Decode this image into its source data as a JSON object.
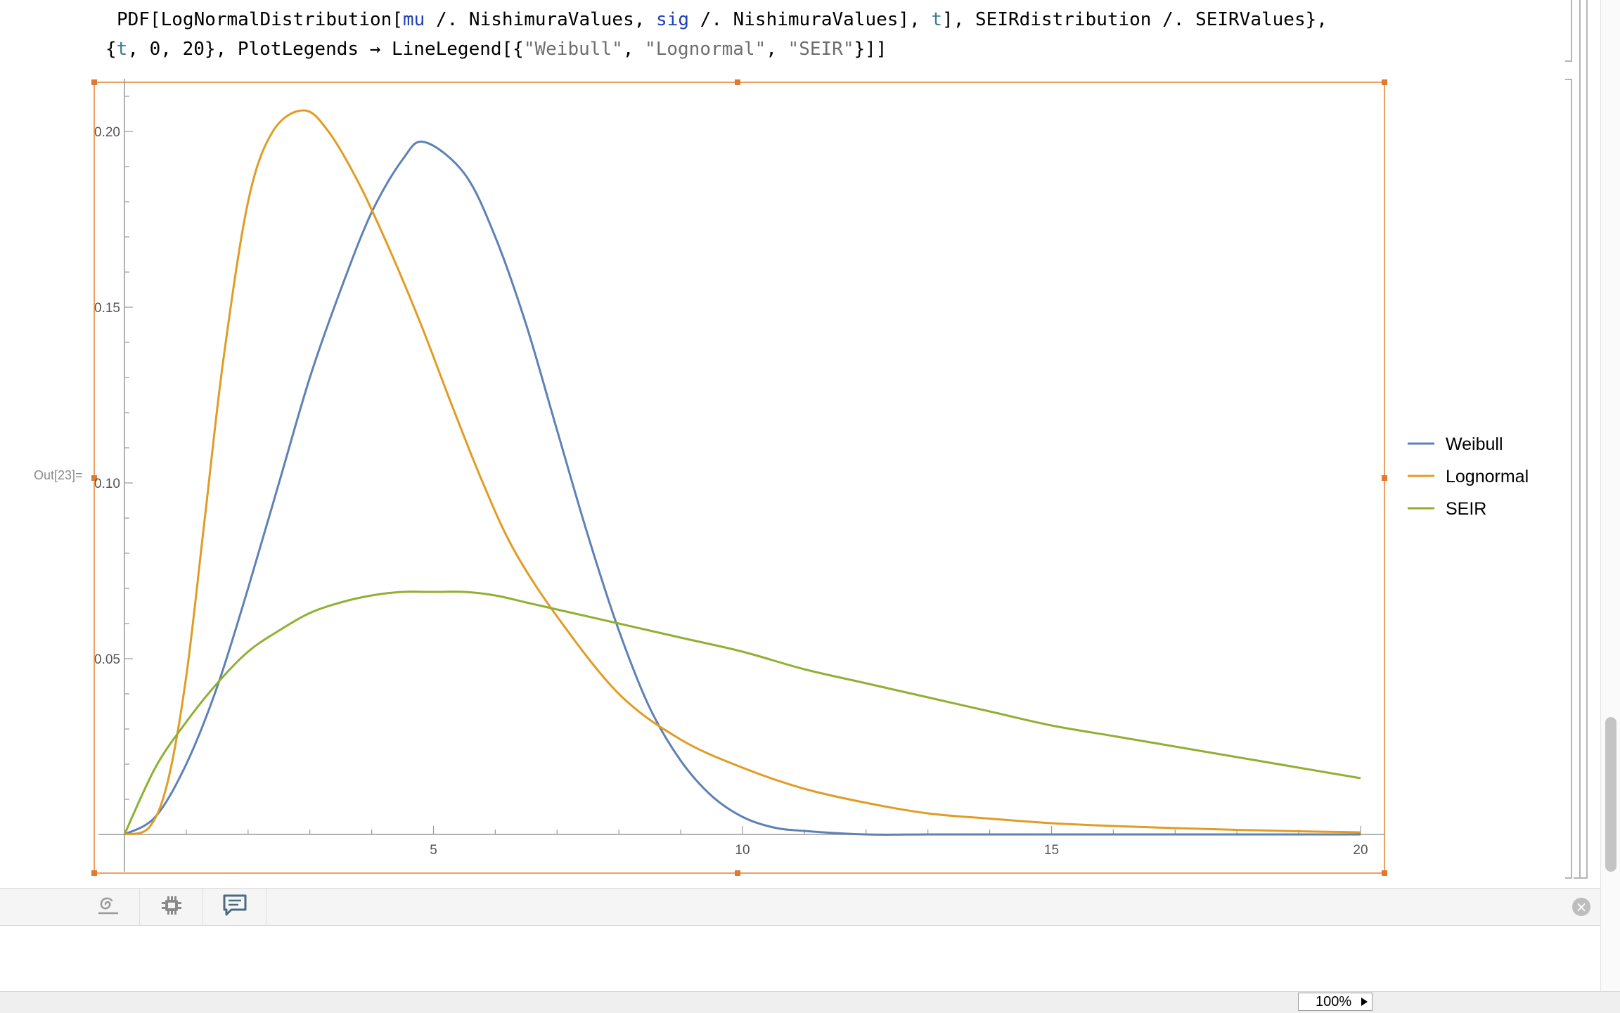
{
  "notebook": {
    "code_line1": {
      "p1": "PDF[LogNormalDistribution[",
      "mu": "mu",
      "p2": " /. NishimuraValues, ",
      "sig": "sig",
      "p3": " /. NishimuraValues], ",
      "t": "t",
      "p4": "], SEIRdistribution /. SEIRValues},"
    },
    "code_line2": {
      "p1": "{",
      "t": "t",
      "p2": ", 0, 20}, PlotLegends → LineLegend[{",
      "s1": "\"Weibull\"",
      "p3": ", ",
      "s2": "\"Lognormal\"",
      "p4": ", ",
      "s3": "\"SEIR\"",
      "p5": "}]]"
    },
    "out_label": "Out[23]=",
    "zoom_label": "100%"
  },
  "icons": [
    "evaluation-icon",
    "suggestions-gear-icon",
    "comment-icon",
    "close-icon",
    "zoom-arrow-icon"
  ],
  "chart_data": {
    "type": "line",
    "title": "",
    "xlabel": "",
    "ylabel": "",
    "xlim": [
      0,
      20
    ],
    "ylim": [
      0,
      0.21
    ],
    "x_ticks": [
      5,
      10,
      15,
      20
    ],
    "y_ticks": [
      0.05,
      0.1,
      0.15,
      0.2
    ],
    "x_tick_labels": [
      "5",
      "10",
      "15",
      "20"
    ],
    "y_tick_labels": [
      "0.05",
      "0.10",
      "0.15",
      "0.20"
    ],
    "grid": false,
    "legend_position": "right",
    "series": [
      {
        "name": "Weibull",
        "color": "#5e81b5",
        "x": [
          0,
          0.5,
          1,
          1.5,
          2,
          2.5,
          3,
          3.5,
          4,
          4.5,
          4.85,
          5.5,
          6,
          6.5,
          7,
          7.5,
          8,
          8.5,
          9,
          9.5,
          10,
          10.5,
          11,
          12,
          13,
          14,
          15,
          16,
          17,
          18,
          19,
          20
        ],
        "y": [
          0,
          0.005,
          0.02,
          0.042,
          0.07,
          0.1,
          0.13,
          0.155,
          0.177,
          0.192,
          0.197,
          0.188,
          0.17,
          0.145,
          0.115,
          0.085,
          0.058,
          0.036,
          0.021,
          0.011,
          0.005,
          0.002,
          0.001,
          0,
          0,
          0,
          0,
          0,
          0,
          0,
          0,
          0
        ]
      },
      {
        "name": "Lognormal",
        "color": "#e19c24",
        "x": [
          0,
          0.4,
          0.7,
          1,
          1.3,
          1.6,
          2,
          2.4,
          2.9,
          3.3,
          3.8,
          4.3,
          4.8,
          5.3,
          5.8,
          6.3,
          7,
          8,
          9,
          10,
          11,
          12,
          13,
          14,
          15,
          16,
          17,
          18,
          19,
          20
        ],
        "y": [
          0,
          0.002,
          0.015,
          0.045,
          0.09,
          0.135,
          0.18,
          0.2,
          0.206,
          0.2,
          0.185,
          0.166,
          0.145,
          0.122,
          0.1,
          0.081,
          0.062,
          0.04,
          0.027,
          0.019,
          0.013,
          0.009,
          0.006,
          0.0045,
          0.0032,
          0.0024,
          0.0018,
          0.0013,
          0.0009,
          0.0006
        ]
      },
      {
        "name": "SEIR",
        "color": "#8fb032",
        "x": [
          0,
          0.5,
          1,
          1.5,
          2,
          2.5,
          3,
          3.5,
          4,
          4.5,
          5,
          5.5,
          6,
          6.5,
          7,
          8,
          9,
          10,
          11,
          12,
          13,
          14,
          15,
          16,
          17,
          18,
          19,
          20
        ],
        "y": [
          0,
          0.019,
          0.032,
          0.043,
          0.052,
          0.058,
          0.063,
          0.066,
          0.068,
          0.069,
          0.069,
          0.069,
          0.068,
          0.066,
          0.064,
          0.06,
          0.056,
          0.052,
          0.047,
          0.043,
          0.039,
          0.035,
          0.031,
          0.028,
          0.025,
          0.022,
          0.019,
          0.016
        ]
      }
    ]
  }
}
